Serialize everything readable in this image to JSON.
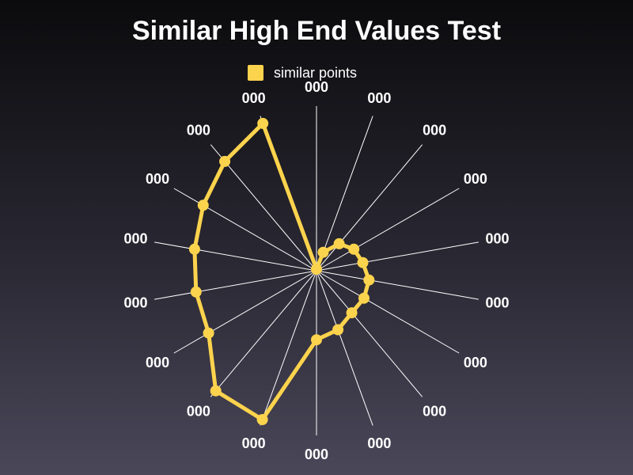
{
  "chart_data": {
    "type": "radar",
    "title": "Similar High End Values Test",
    "legend": {
      "position": "top"
    },
    "categories": [
      "000",
      "000",
      "000",
      "000",
      "000",
      "000",
      "000",
      "000",
      "000",
      "000",
      "000",
      "000",
      "000",
      "000",
      "000",
      "000",
      "000",
      "000"
    ],
    "series": [
      {
        "name": "similar points",
        "color": "#fcd34d",
        "values": [
          2,
          25,
          45,
          55,
          60,
          68,
          70,
          70,
          80,
          88,
          202,
          200,
          159,
          156,
          158,
          167,
          182,
          200
        ]
      }
    ],
    "rlim": [
      0,
      210
    ],
    "grid": true
  }
}
